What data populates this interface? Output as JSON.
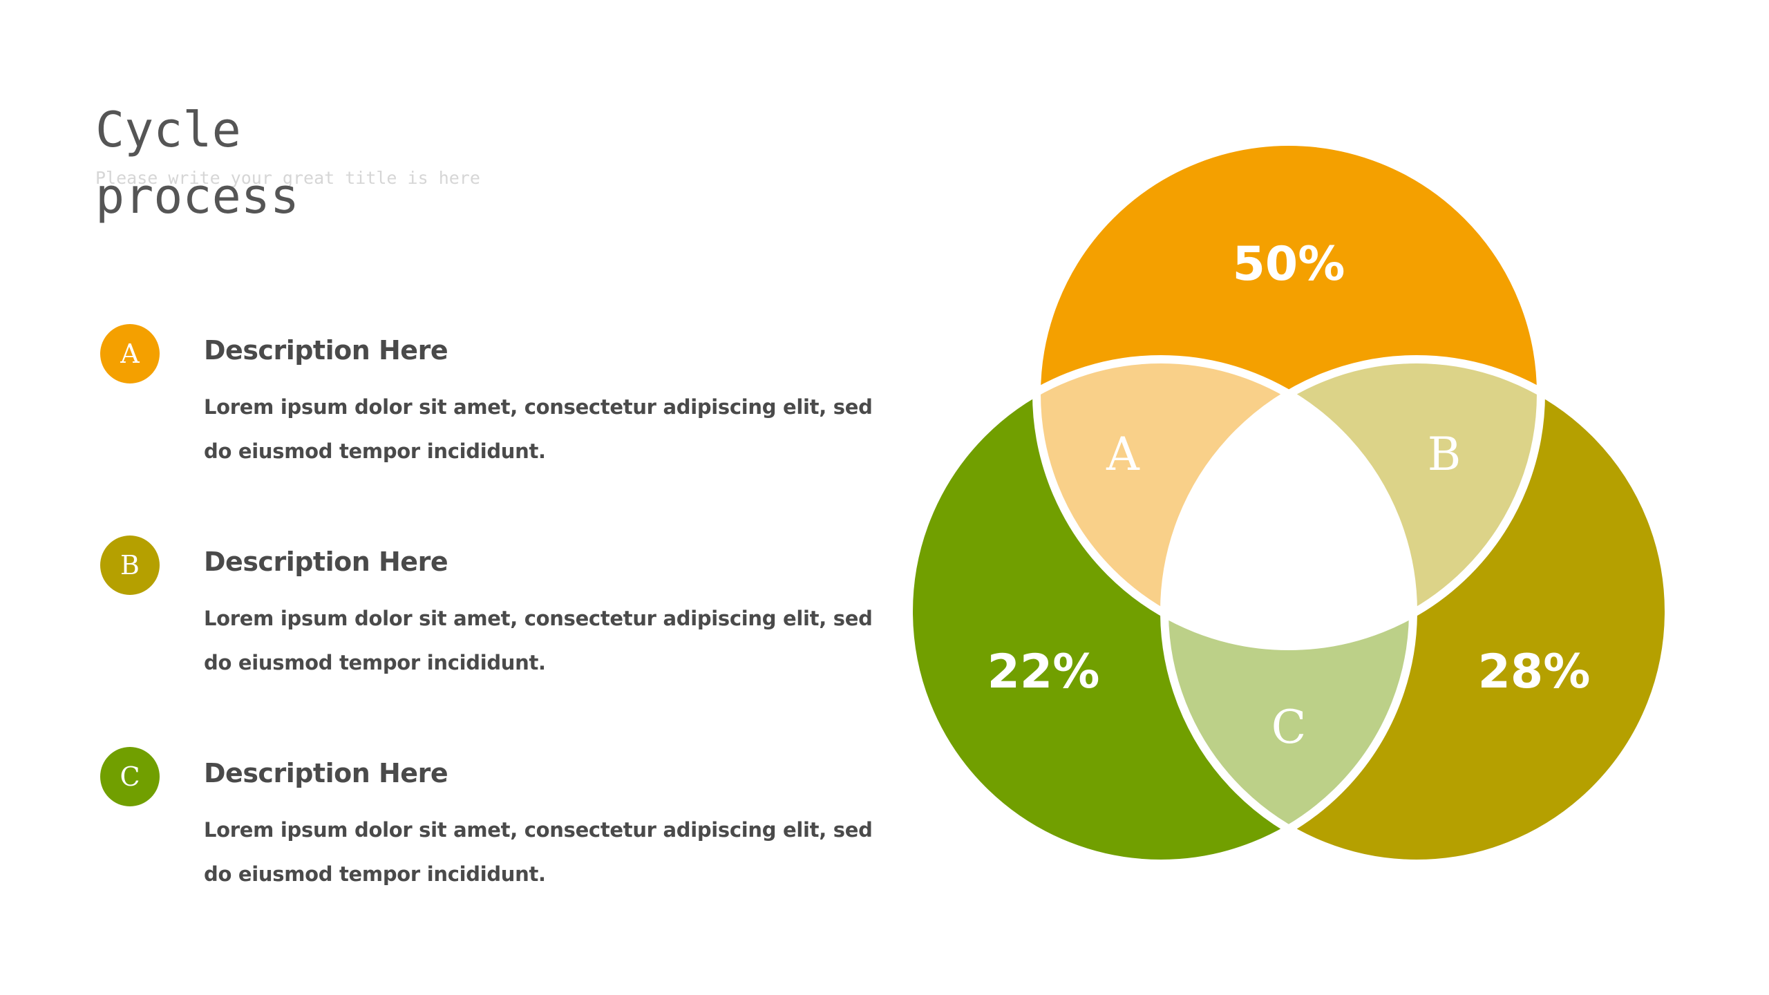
{
  "header": {
    "title": "Cycle process",
    "subtitle": "Please write your great title is here"
  },
  "items": [
    {
      "letter": "A",
      "heading": "Description Here",
      "body": "Lorem ipsum dolor sit amet, consectetur adipiscing elit, sed do eiusmod tempor incididunt.",
      "color": "#F4A000"
    },
    {
      "letter": "B",
      "heading": "Description Here",
      "body": "Lorem ipsum dolor sit amet, consectetur adipiscing elit, sed do eiusmod tempor incididunt.",
      "color": "#B5A000"
    },
    {
      "letter": "C",
      "heading": "Description Here",
      "body": "Lorem ipsum dolor sit amet, consectetur adipiscing elit, sed do eiusmod tempor incididunt.",
      "color": "#719F00"
    }
  ],
  "venn": {
    "circles": [
      {
        "label": "50%",
        "color": "#F4A000"
      },
      {
        "label": "22%",
        "color": "#719F00"
      },
      {
        "label": "28%",
        "color": "#B5A000"
      }
    ],
    "overlaps": [
      {
        "letter": "A",
        "color": "#F9D089"
      },
      {
        "letter": "B",
        "color": "#DCD388"
      },
      {
        "letter": "C",
        "color": "#BCD088"
      }
    ],
    "center_color": "#FFFFFF"
  }
}
